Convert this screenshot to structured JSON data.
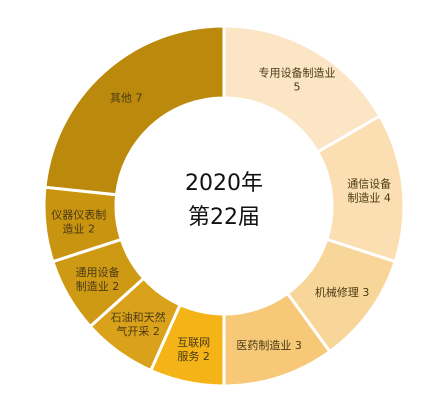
{
  "chart_data": {
    "type": "pie",
    "variant": "donut",
    "center_label": [
      "2020年",
      "第22届"
    ],
    "slices": [
      {
        "label": "专用设备制造业",
        "value": 5,
        "color": "#fbe5c4",
        "label_lines": [
          "专用设备制造业",
          "5"
        ]
      },
      {
        "label": "通信设备制造业",
        "value": 4,
        "color": "#fbdfb2",
        "label_lines": [
          "通信设备",
          "制造业 4"
        ]
      },
      {
        "label": "机械修理",
        "value": 3,
        "color": "#f8d598",
        "label_lines": [
          "机械修理 3"
        ]
      },
      {
        "label": "医药制造业",
        "value": 3,
        "color": "#f6c878",
        "label_lines": [
          "医药制造业 3"
        ]
      },
      {
        "label": "互联网服务",
        "value": 2,
        "color": "#f4b418",
        "label_lines": [
          "互联网",
          "服务 2"
        ]
      },
      {
        "label": "石油和天然气开采",
        "value": 2,
        "color": "#d9a21a",
        "label_lines": [
          "石油和天然",
          "气开采 2"
        ]
      },
      {
        "label": "通用设备制造业",
        "value": 2,
        "color": "#cf9a13",
        "label_lines": [
          "通用设备",
          "制造业 2"
        ]
      },
      {
        "label": "仪器仪表制造业",
        "value": 2,
        "color": "#c99510",
        "label_lines": [
          "仪器仪表制",
          "造业 2"
        ]
      },
      {
        "label": "其他",
        "value": 7,
        "color": "#bb8a0c",
        "label_lines": [
          "其他 7"
        ]
      }
    ]
  }
}
